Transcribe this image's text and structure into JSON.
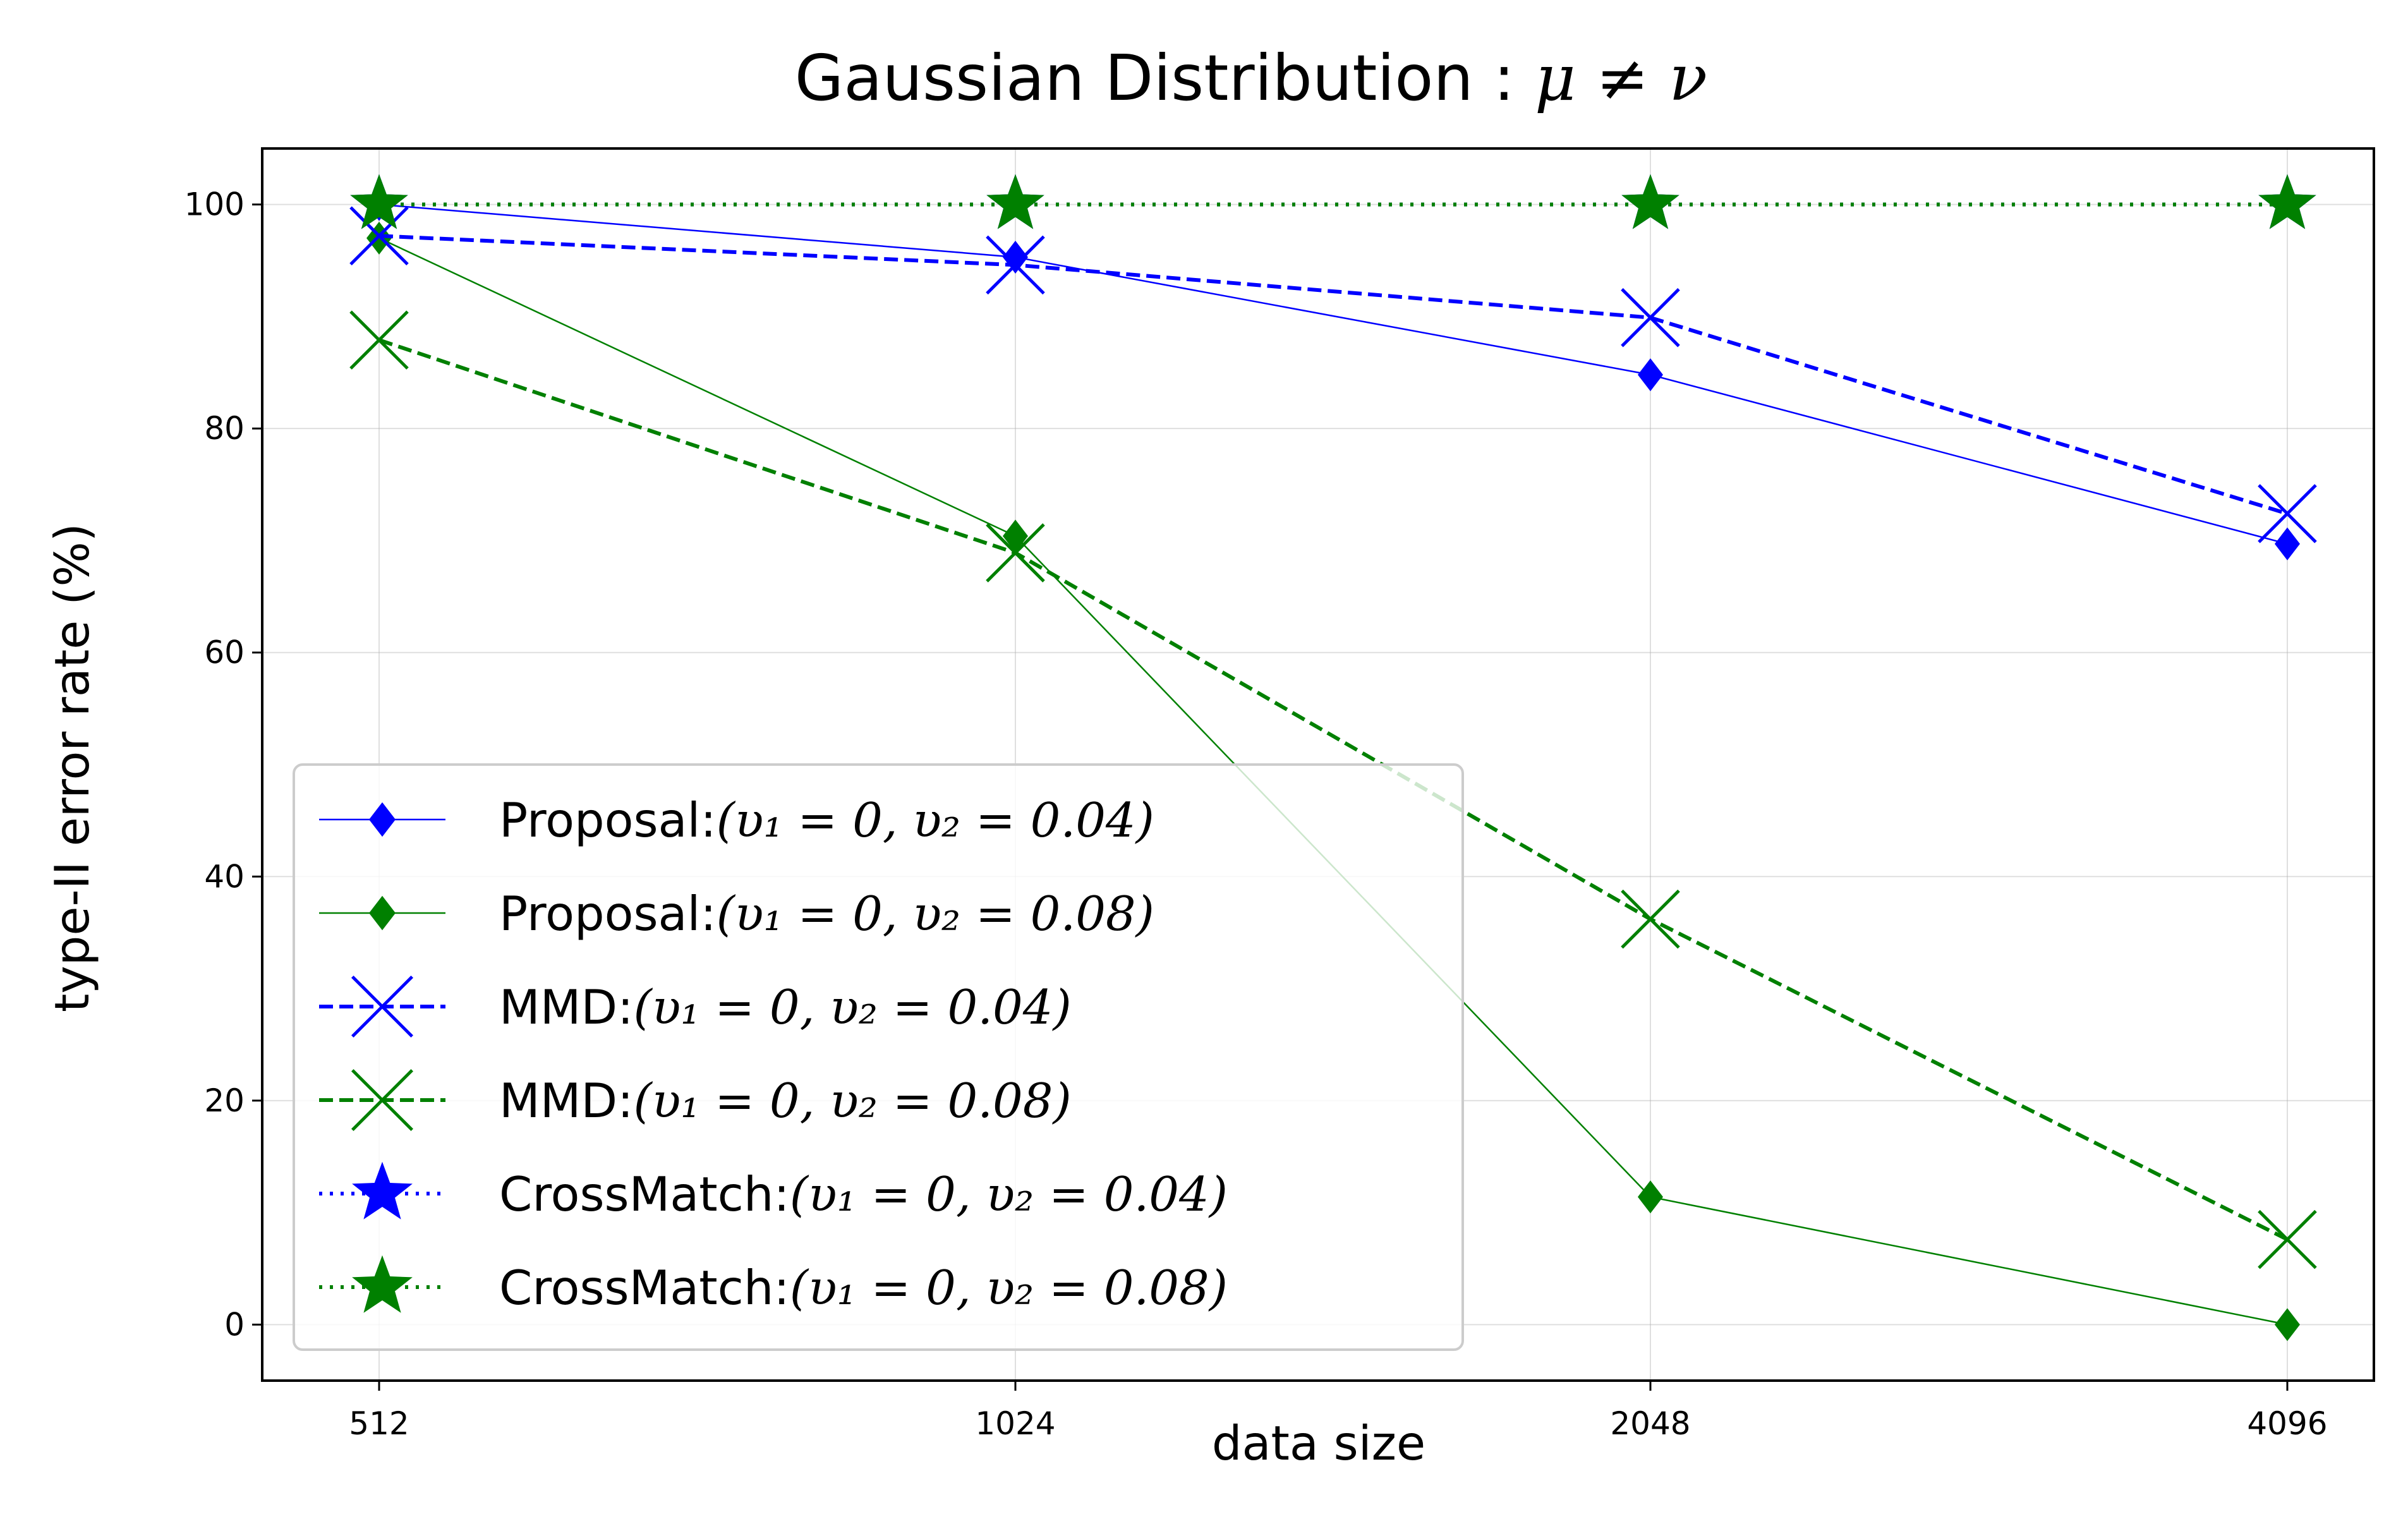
{
  "chart_data": {
    "type": "line",
    "title": "Gaussian Distribution : μ ≠ ν",
    "title_parts": {
      "text": "Gaussian Distribution : ",
      "math": "μ ≠ ν"
    },
    "xlabel": "data size",
    "ylabel": "type-II error rate (%)",
    "categories": [
      "512",
      "1024",
      "2048",
      "4096"
    ],
    "yticks": [
      0,
      20,
      40,
      60,
      80,
      100
    ],
    "ylim": [
      -5,
      105
    ],
    "grid": true,
    "legend_position": "lower-left",
    "series": [
      {
        "name": "Proposal:(υ₁ = 0, υ₂ = 0.04)",
        "label_prefix": "Proposal:",
        "label_math": "(υ₁ = 0, υ₂ = 0.04)",
        "color": "#0000ff",
        "linestyle": "solid",
        "marker": "diamond",
        "values": [
          100,
          95.3,
          84.8,
          69.7
        ]
      },
      {
        "name": "Proposal:(υ₁ = 0, υ₂ = 0.08)",
        "label_prefix": "Proposal:",
        "label_math": "(υ₁ = 0, υ₂ = 0.08)",
        "color": "#008000",
        "linestyle": "solid",
        "marker": "diamond",
        "values": [
          97.0,
          70.4,
          11.4,
          0.0
        ]
      },
      {
        "name": "MMD:(υ₁ = 0, υ₂ = 0.04)",
        "label_prefix": "MMD:",
        "label_math": "(υ₁ = 0, υ₂ = 0.04)",
        "color": "#0000ff",
        "linestyle": "dashed",
        "marker": "x",
        "values": [
          97.2,
          94.6,
          89.9,
          72.4
        ]
      },
      {
        "name": "MMD:(υ₁ = 0, υ₂ = 0.08)",
        "label_prefix": "MMD:",
        "label_math": "(υ₁ = 0, υ₂ = 0.08)",
        "color": "#008000",
        "linestyle": "dashed",
        "marker": "x",
        "values": [
          87.9,
          68.9,
          36.2,
          7.6
        ]
      },
      {
        "name": "CrossMatch:(υ₁ = 0, υ₂ = 0.04)",
        "label_prefix": "CrossMatch:",
        "label_math": "(υ₁ = 0, υ₂ = 0.04)",
        "color": "#0000ff",
        "linestyle": "dotted",
        "marker": "star",
        "values": [
          100,
          100,
          100,
          100
        ]
      },
      {
        "name": "CrossMatch:(υ₁ = 0, υ₂ = 0.08)",
        "label_prefix": "CrossMatch:",
        "label_math": "(υ₁ = 0, υ₂ = 0.08)",
        "color": "#008000",
        "linestyle": "dotted",
        "marker": "star",
        "values": [
          100,
          100,
          100,
          100
        ]
      }
    ]
  }
}
